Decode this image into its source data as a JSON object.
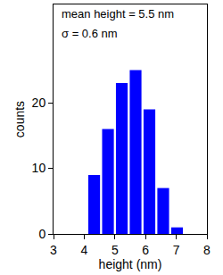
{
  "chart_data": {
    "type": "histogram",
    "bins": [
      4.1,
      4.55,
      5.0,
      5.45,
      5.9,
      6.35,
      6.8,
      7.25
    ],
    "values": [
      9,
      16,
      23,
      25,
      19,
      7,
      1
    ],
    "color": "#0000ff",
    "x_label": "height (nm)",
    "y_label": "counts",
    "annotations": [
      "mean height = 5.5 nm",
      "σ = 0.6 nm"
    ],
    "xlim": [
      3,
      8
    ],
    "xticks": [
      3,
      4,
      5,
      6,
      7,
      8
    ],
    "ylim": [
      0,
      35
    ],
    "yticks": [
      0,
      10,
      20
    ],
    "grid": false
  }
}
